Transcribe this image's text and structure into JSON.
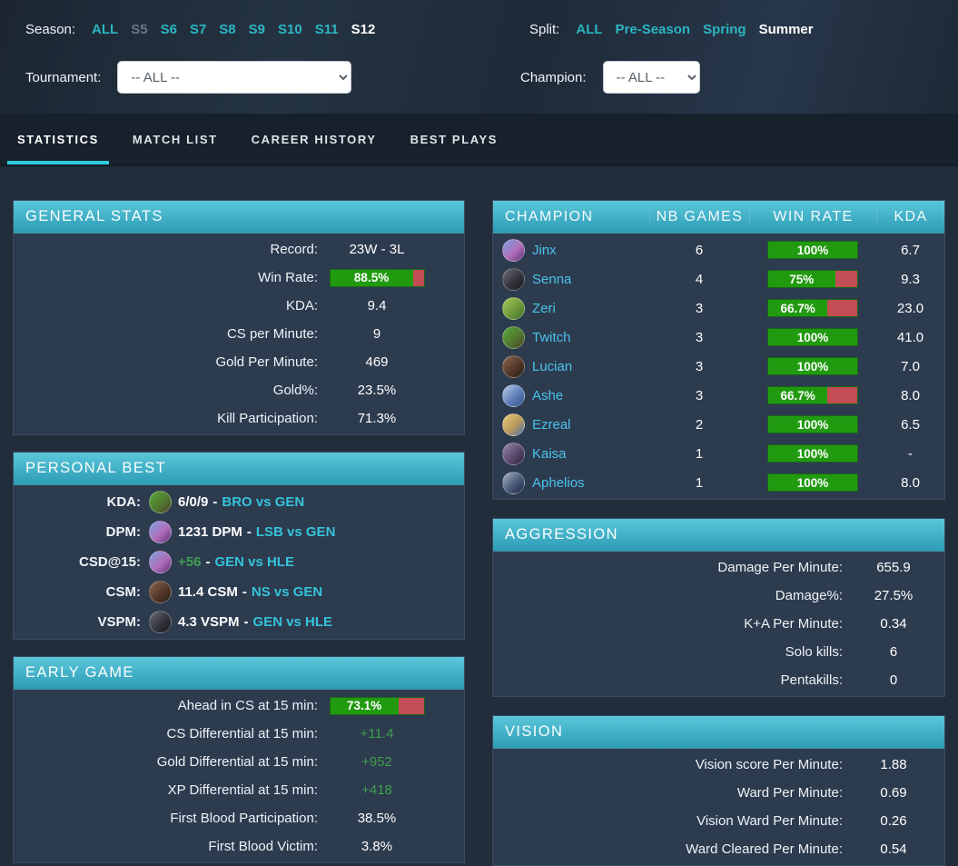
{
  "colors": {
    "accent_cyan": "#2fc9de",
    "header_gradient_top": "#5ac7da",
    "header_gradient_bottom": "#2d9cb5",
    "bar_green": "#219a10",
    "bar_red": "#c24d55",
    "filter_link": "#2db5c2",
    "champion_link": "#49c3ea",
    "match_link": "#35c3d9",
    "green_text": "#3f9e4f",
    "muted_link": "#6b7684",
    "panel_bg": "#2d3b4f"
  },
  "filters": {
    "season": {
      "label": "Season:",
      "options": [
        {
          "label": "ALL",
          "state": "link"
        },
        {
          "label": "S5",
          "state": "muted"
        },
        {
          "label": "S6",
          "state": "link"
        },
        {
          "label": "S7",
          "state": "link"
        },
        {
          "label": "S8",
          "state": "link"
        },
        {
          "label": "S9",
          "state": "link"
        },
        {
          "label": "S10",
          "state": "link"
        },
        {
          "label": "S11",
          "state": "link"
        },
        {
          "label": "S12",
          "state": "active"
        }
      ]
    },
    "split": {
      "label": "Split:",
      "options": [
        {
          "label": "ALL",
          "state": "link"
        },
        {
          "label": "Pre-Season",
          "state": "link"
        },
        {
          "label": "Spring",
          "state": "link"
        },
        {
          "label": "Summer",
          "state": "active"
        }
      ]
    },
    "tournament": {
      "label": "Tournament:",
      "value": "-- ALL --"
    },
    "champion": {
      "label": "Champion:",
      "value": "-- ALL --"
    }
  },
  "tabs": [
    {
      "label": "STATISTICS",
      "active": true
    },
    {
      "label": "MATCH LIST",
      "active": false
    },
    {
      "label": "CAREER HISTORY",
      "active": false
    },
    {
      "label": "BEST PLAYS",
      "active": false
    }
  ],
  "general_stats": {
    "title": "GENERAL STATS",
    "rows": [
      {
        "label": "Record:",
        "value": "23W - 3L",
        "type": "text"
      },
      {
        "label": "Win Rate:",
        "value": "88.5%",
        "type": "bar",
        "pct": 88.5
      },
      {
        "label": "KDA:",
        "value": "9.4",
        "type": "text"
      },
      {
        "label": "CS per Minute:",
        "value": "9",
        "type": "text"
      },
      {
        "label": "Gold Per Minute:",
        "value": "469",
        "type": "text"
      },
      {
        "label": "Gold%:",
        "value": "23.5%",
        "type": "text"
      },
      {
        "label": "Kill Participation:",
        "value": "71.3%",
        "type": "text"
      }
    ]
  },
  "personal_best": {
    "title": "PERSONAL BEST",
    "separator": "-",
    "rows": [
      {
        "label": "KDA:",
        "champion": "Twitch",
        "value": "6/0/9",
        "green": false,
        "match": "BRO vs GEN"
      },
      {
        "label": "DPM:",
        "champion": "Jinx",
        "value": "1231 DPM",
        "green": false,
        "match": "LSB vs GEN"
      },
      {
        "label": "CSD@15:",
        "champion": "Jinx",
        "value": "+56",
        "green": true,
        "match": "GEN vs HLE"
      },
      {
        "label": "CSM:",
        "champion": "Lucian",
        "value": "11.4 CSM",
        "green": false,
        "match": "NS vs GEN"
      },
      {
        "label": "VSPM:",
        "champion": "Senna",
        "value": "4.3 VSPM",
        "green": false,
        "match": "GEN vs HLE"
      }
    ]
  },
  "early_game": {
    "title": "EARLY GAME",
    "rows": [
      {
        "label": "Ahead in CS at 15 min:",
        "value": "73.1%",
        "type": "bar",
        "pct": 73.1
      },
      {
        "label": "CS Differential at 15 min:",
        "value": "+11.4",
        "type": "green"
      },
      {
        "label": "Gold Differential at 15 min:",
        "value": "+952",
        "type": "green"
      },
      {
        "label": "XP Differential at 15 min:",
        "value": "+418",
        "type": "green"
      },
      {
        "label": "First Blood Participation:",
        "value": "38.5%",
        "type": "text"
      },
      {
        "label": "First Blood Victim:",
        "value": "3.8%",
        "type": "text"
      }
    ]
  },
  "champions_table": {
    "columns": [
      "CHAMPION",
      "NB GAMES",
      "WIN RATE",
      "KDA"
    ],
    "rows": [
      {
        "champion": "Jinx",
        "games": "6",
        "win_rate": "100%",
        "pct": 100,
        "kda": "6.7"
      },
      {
        "champion": "Senna",
        "games": "4",
        "win_rate": "75%",
        "pct": 75,
        "kda": "9.3"
      },
      {
        "champion": "Zeri",
        "games": "3",
        "win_rate": "66.7%",
        "pct": 66.7,
        "kda": "23.0"
      },
      {
        "champion": "Twitch",
        "games": "3",
        "win_rate": "100%",
        "pct": 100,
        "kda": "41.0"
      },
      {
        "champion": "Lucian",
        "games": "3",
        "win_rate": "100%",
        "pct": 100,
        "kda": "7.0"
      },
      {
        "champion": "Ashe",
        "games": "3",
        "win_rate": "66.7%",
        "pct": 66.7,
        "kda": "8.0"
      },
      {
        "champion": "Ezreal",
        "games": "2",
        "win_rate": "100%",
        "pct": 100,
        "kda": "6.5"
      },
      {
        "champion": "Kaisa",
        "games": "1",
        "win_rate": "100%",
        "pct": 100,
        "kda": "-"
      },
      {
        "champion": "Aphelios",
        "games": "1",
        "win_rate": "100%",
        "pct": 100,
        "kda": "8.0"
      }
    ]
  },
  "aggression": {
    "title": "AGGRESSION",
    "rows": [
      {
        "label": "Damage Per Minute:",
        "value": "655.9",
        "type": "text"
      },
      {
        "label": "Damage%:",
        "value": "27.5%",
        "type": "text"
      },
      {
        "label": "K+A Per Minute:",
        "value": "0.34",
        "type": "text"
      },
      {
        "label": "Solo kills:",
        "value": "6",
        "type": "text"
      },
      {
        "label": "Pentakills:",
        "value": "0",
        "type": "text"
      }
    ]
  },
  "vision": {
    "title": "VISION",
    "rows": [
      {
        "label": "Vision score Per Minute:",
        "value": "1.88",
        "type": "text"
      },
      {
        "label": "Ward Per Minute:",
        "value": "0.69",
        "type": "text"
      },
      {
        "label": "Vision Ward Per Minute:",
        "value": "0.26",
        "type": "text"
      },
      {
        "label": "Ward Cleared Per Minute:",
        "value": "0.54",
        "type": "text"
      }
    ]
  },
  "champion_colors": {
    "Jinx": [
      "#7c9fe0",
      "#b06fb8",
      "#5e2f7a"
    ],
    "Senna": [
      "#6e6e78",
      "#34343c",
      "#17171d"
    ],
    "Zeri": [
      "#a8c85a",
      "#6f9a3c",
      "#3f6f2a"
    ],
    "Twitch": [
      "#5aa83c",
      "#4f7a30",
      "#52402a"
    ],
    "Lucian": [
      "#8a6a52",
      "#55382b",
      "#241d18"
    ],
    "Ashe": [
      "#b8cce8",
      "#5f7fb8",
      "#32528e"
    ],
    "Ezreal": [
      "#e8c87a",
      "#b89a5c",
      "#4a6fae"
    ],
    "Kaisa": [
      "#9a8aa8",
      "#5b4a6e",
      "#2b2136"
    ],
    "Aphelios": [
      "#aab4c8",
      "#4a5a78",
      "#1c2740"
    ]
  }
}
